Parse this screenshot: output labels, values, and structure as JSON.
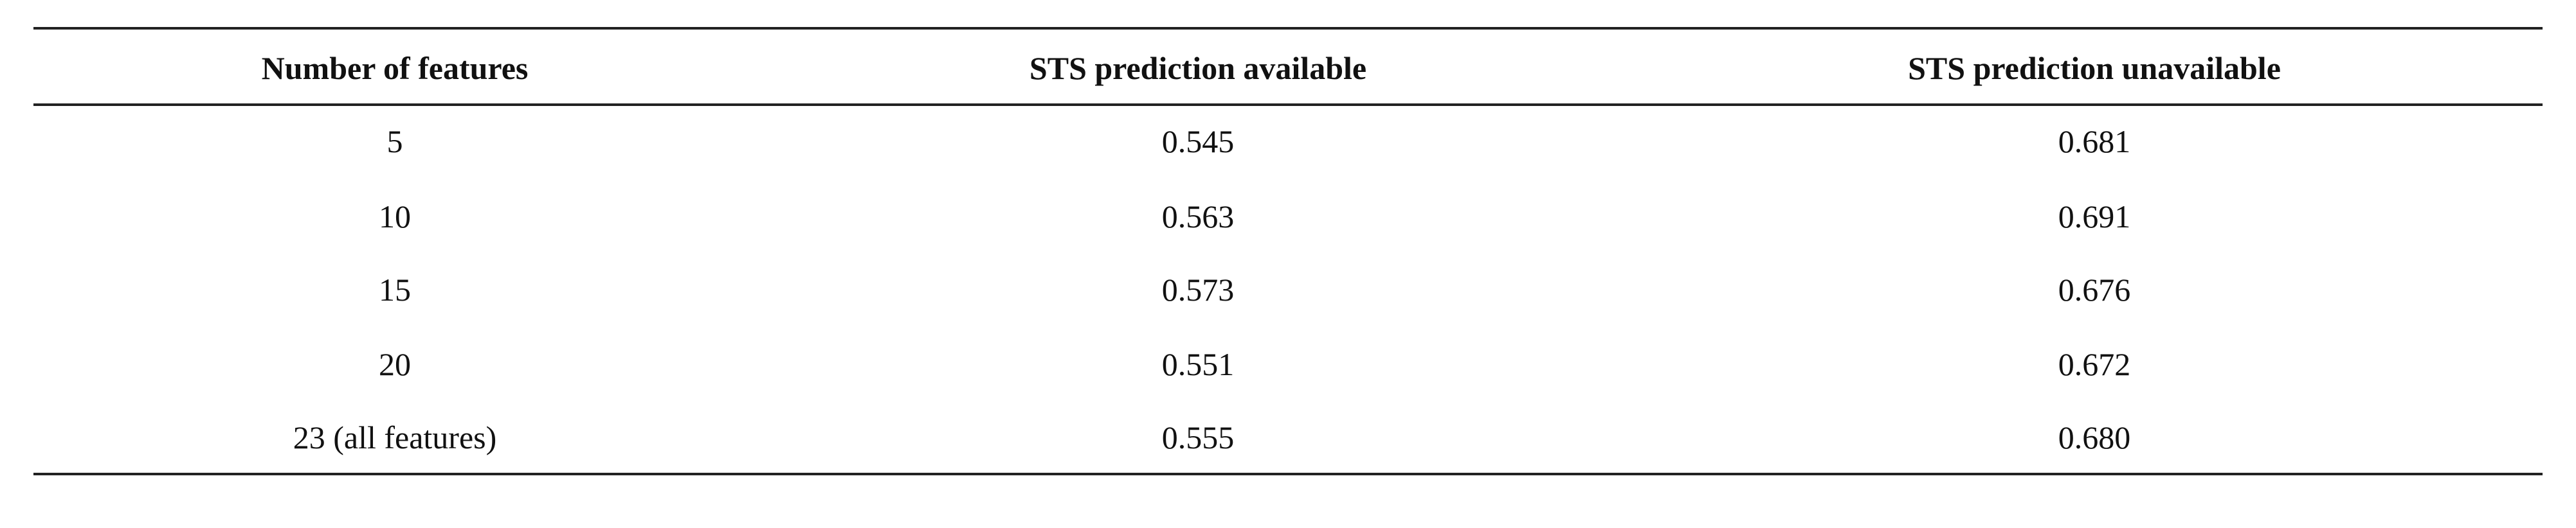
{
  "table": {
    "header": [
      "Number of features",
      "STS prediction available",
      "STS prediction unavailable"
    ],
    "rows": [
      [
        "5",
        "0.545",
        "0.681"
      ],
      [
        "10",
        "0.563",
        "0.691"
      ],
      [
        "15",
        "0.573",
        "0.676"
      ],
      [
        "20",
        "0.551",
        "0.672"
      ],
      [
        "23 (all features)",
        "0.555",
        "0.680"
      ]
    ]
  }
}
